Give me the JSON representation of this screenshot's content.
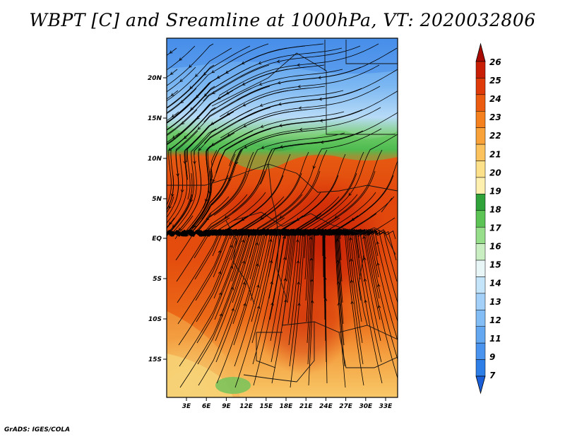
{
  "title": "WBPT [C] and Sreamline at 1000hPa, VT: 2020032806",
  "credit": "GrADS: IGES/COLA",
  "map": {
    "lat_labels": [
      "20N",
      "15N",
      "10N",
      "5N",
      "EQ",
      "5S",
      "10S",
      "15S"
    ],
    "lon_labels": [
      "3E",
      "6E",
      "9E",
      "12E",
      "15E",
      "18E",
      "21E",
      "24E",
      "27E",
      "30E",
      "33E"
    ]
  },
  "colorbar": {
    "labels": [
      "7",
      "9",
      "11",
      "12",
      "13",
      "14",
      "15",
      "16",
      "17",
      "18",
      "19",
      "20",
      "21",
      "22",
      "23",
      "24",
      "25",
      "26"
    ],
    "colors": [
      "#1a5fd8",
      "#2e7ee8",
      "#4a93ee",
      "#64a8f2",
      "#82bdf5",
      "#a2d0f8",
      "#c4e4fa",
      "#e8f6f8",
      "#c8eec2",
      "#96de8a",
      "#5cc455",
      "#2fa33a",
      "#fff0b0",
      "#fde08a",
      "#fbc25e",
      "#f9a23a",
      "#f4801e",
      "#ec5c10",
      "#de3a0a",
      "#c81e06",
      "#a80a02"
    ]
  }
}
